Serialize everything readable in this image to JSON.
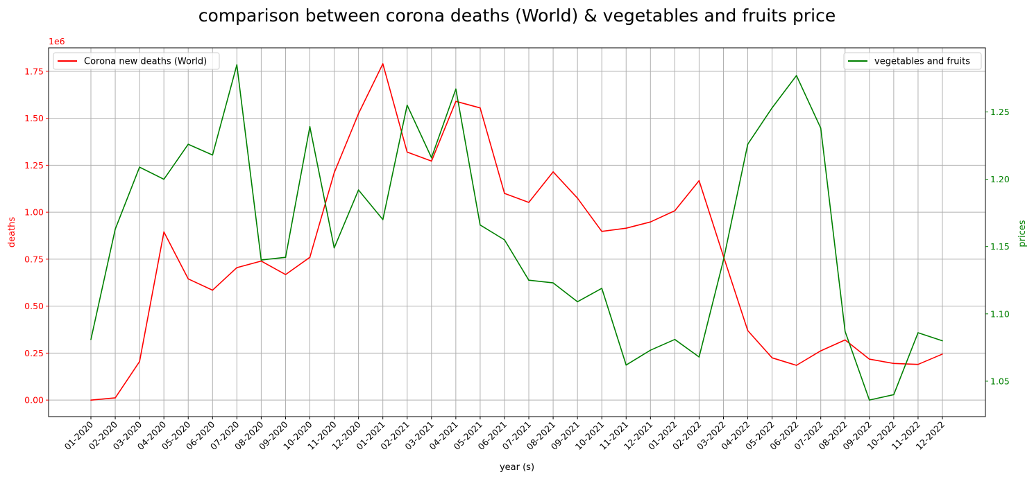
{
  "chart_data": {
    "type": "line",
    "title": "comparison between corona deaths (World) & vegetables and fruits price",
    "xlabel": "year (s)",
    "ylabel_left": "deaths",
    "ylabel_right": "prices",
    "left_offset_text": "1e6",
    "categories": [
      "01-2020",
      "02-2020",
      "03-2020",
      "04-2020",
      "05-2020",
      "06-2020",
      "07-2020",
      "08-2020",
      "09-2020",
      "10-2020",
      "11-2020",
      "12-2020",
      "01-2021",
      "02-2021",
      "03-2021",
      "04-2021",
      "05-2021",
      "06-2021",
      "07-2021",
      "08-2021",
      "09-2021",
      "10-2021",
      "11-2021",
      "12-2021",
      "01-2022",
      "02-2022",
      "03-2022",
      "04-2022",
      "05-2022",
      "06-2022",
      "07-2022",
      "08-2022",
      "09-2022",
      "10-2022",
      "11-2022",
      "12-2022"
    ],
    "left_axis": {
      "ylim": [
        -0.088,
        1.875
      ],
      "ticks": [
        0.0,
        0.25,
        0.5,
        0.75,
        1.0,
        1.25,
        1.5,
        1.75
      ],
      "tick_labels": [
        "0.00",
        "0.25",
        "0.50",
        "0.75",
        "1.00",
        "1.25",
        "1.50",
        "1.75"
      ],
      "color": "#ff0000"
    },
    "right_axis": {
      "ylim": [
        1.0237,
        1.2976
      ],
      "ticks": [
        1.05,
        1.1,
        1.15,
        1.2,
        1.25
      ],
      "tick_labels": [
        "1.05",
        "1.10",
        "1.15",
        "1.20",
        "1.25"
      ],
      "color": "#008000"
    },
    "series": [
      {
        "name": "Corona new deaths (World)",
        "axis": "left",
        "color": "#ff0000",
        "values": [
          0.0,
          0.012,
          0.205,
          0.895,
          0.645,
          0.585,
          0.705,
          0.74,
          0.668,
          0.76,
          1.21,
          1.525,
          1.79,
          1.32,
          1.272,
          1.59,
          1.555,
          1.1,
          1.052,
          1.215,
          1.075,
          0.898,
          0.915,
          0.948,
          1.008,
          1.168,
          0.765,
          0.37,
          0.225,
          0.185,
          0.262,
          0.32,
          0.218,
          0.195,
          0.19,
          0.245
        ]
      },
      {
        "name": "vegetables and fruits",
        "axis": "right",
        "color": "#008000",
        "values": [
          1.081,
          1.163,
          1.209,
          1.2,
          1.226,
          1.218,
          1.285,
          1.14,
          1.142,
          1.239,
          1.149,
          1.192,
          1.17,
          1.255,
          1.216,
          1.267,
          1.166,
          1.155,
          1.125,
          1.123,
          1.109,
          1.119,
          1.062,
          1.073,
          1.081,
          1.068,
          1.14,
          1.226,
          1.253,
          1.277,
          1.238,
          1.087,
          1.036,
          1.04,
          1.086,
          1.08
        ]
      }
    ],
    "grid": true,
    "legend_left_placement": "top-left",
    "legend_right_placement": "top-right"
  }
}
